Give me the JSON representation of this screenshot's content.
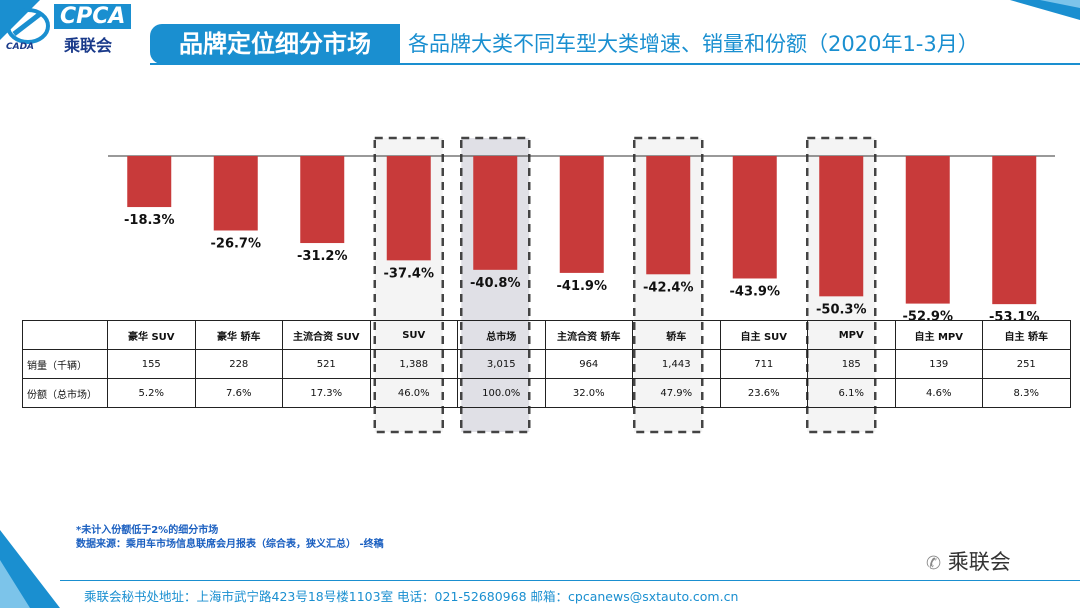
{
  "header": {
    "logo_text": "CPCA",
    "logo_sub": "乘联会",
    "logo_small": "CADA",
    "title_left": "品牌定位细分市场",
    "title_right": "各品牌大类不同车型大类增速、销量和份额（2020年1-3月）"
  },
  "chart_data": {
    "type": "bar",
    "title": "各品牌大类不同车型大类增速、销量和份额（2020年1-3月）",
    "categories": [
      "豪华 SUV",
      "豪华 轿车",
      "主流合资 SUV",
      "SUV",
      "总市场",
      "主流合资 轿车",
      "轿车",
      "自主 SUV",
      "MPV",
      "自主 MPV",
      "自主 轿车"
    ],
    "values": [
      -18.3,
      -26.7,
      -31.2,
      -37.4,
      -40.8,
      -41.9,
      -42.4,
      -43.9,
      -50.3,
      -52.9,
      -53.1
    ],
    "labels": [
      "-18.3%",
      "-26.7%",
      "-31.2%",
      "-37.4%",
      "-40.8%",
      "-41.9%",
      "-42.4%",
      "-43.9%",
      "-50.3%",
      "-52.9%",
      "-53.1%"
    ],
    "ylim": [
      -60,
      0
    ],
    "highlight_dashed": [
      3,
      4,
      6,
      8
    ],
    "highlight_filled": [
      4
    ],
    "bar_color": "#c83a3a"
  },
  "table": {
    "rows": [
      {
        "label": "销量（千辆）",
        "cells": [
          "155",
          "228",
          "521",
          "1,388",
          "3,015",
          "964",
          "1,443",
          "711",
          "185",
          "139",
          "251"
        ]
      },
      {
        "label": "份额（总市场）",
        "cells": [
          "5.2%",
          "7.6%",
          "17.3%",
          "46.0%",
          "100.0%",
          "32.0%",
          "47.9%",
          "23.6%",
          "6.1%",
          "4.6%",
          "8.3%"
        ]
      }
    ]
  },
  "footnote": {
    "line1": "*未计入份额低于2%的细分市场",
    "line2": "数据来源：乘用车市场信息联席会月报表（综合表，狭义汇总）    -终稿"
  },
  "footer": "乘联会秘书处地址：上海市武宁路423号18号楼1103室   电话：021-52680968   邮箱：cpcanews@sxtauto.com.cn",
  "watermark": "乘联会",
  "colors": {
    "brand": "#1a8fd0",
    "bar": "#c83a3a",
    "highlight": "#e0e0e6"
  }
}
